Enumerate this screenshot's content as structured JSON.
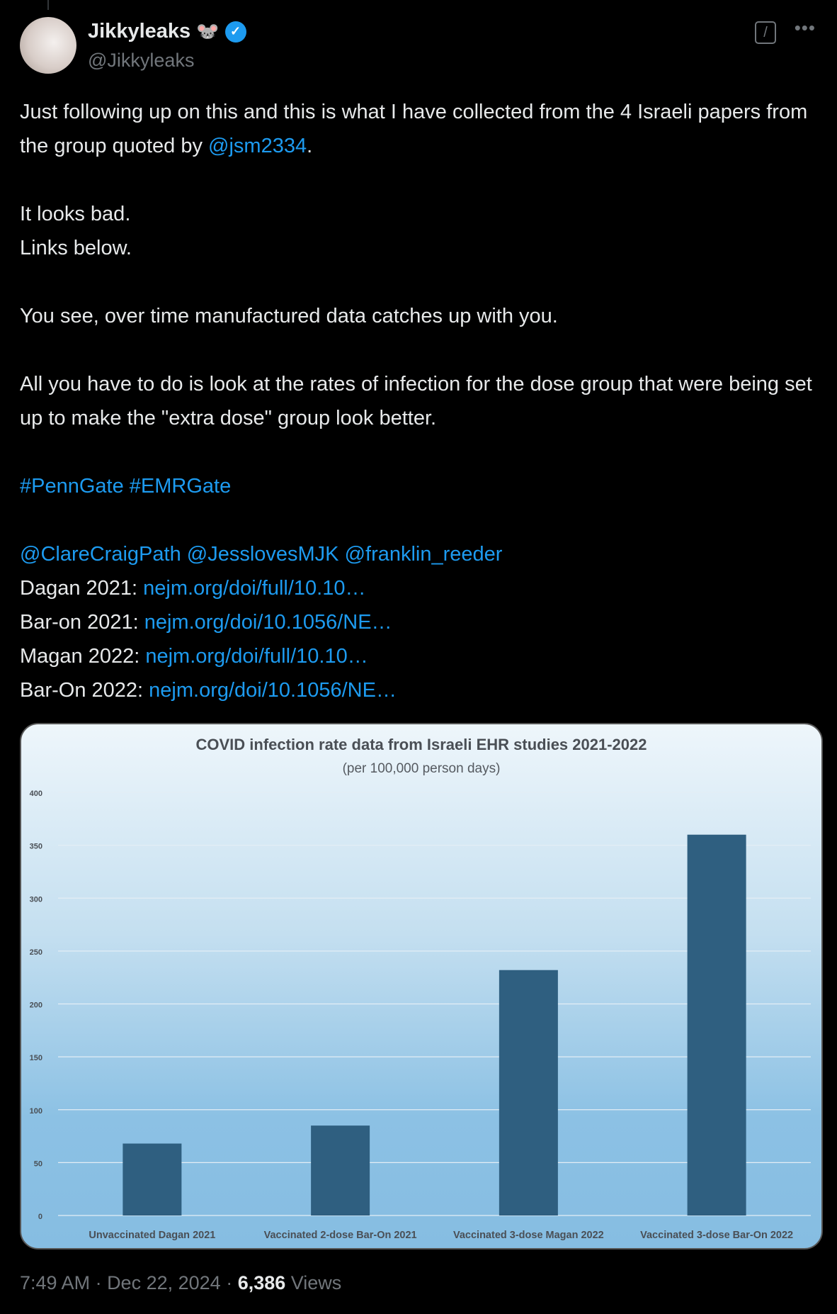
{
  "author": {
    "name": "Jikkyleaks",
    "emoji": "🐭",
    "handle": "@Jikkyleaks",
    "verified": true
  },
  "icons": {
    "grok": "grok-icon",
    "more": "more-icon"
  },
  "post": {
    "p1a": "Just following up on this and this is what I have collected from the 4 Israeli papers from the group quoted by ",
    "mention1": "@jsm2334",
    "p1b": ".",
    "p2": "It looks bad.\nLinks below.",
    "p3": "You see, over time manufactured data catches up with you.",
    "p4": "All you have to do is look at the rates of infection for the dose group that were being set up to make the \"extra dose\" group look better.",
    "hashtags": "#PennGate #EMRGate",
    "mentions": "@ClareCraigPath @JesslovesMJK @franklin_reeder",
    "links": [
      {
        "label": "Dagan 2021: ",
        "url": "nejm.org/doi/full/10.10…"
      },
      {
        "label": "Bar-on 2021: ",
        "url": "nejm.org/doi/10.1056/NE…"
      },
      {
        "label": "Magan 2022: ",
        "url": "nejm.org/doi/full/10.10…"
      },
      {
        "label": "Bar-On 2022: ",
        "url": "nejm.org/doi/10.1056/NE…"
      }
    ]
  },
  "chart_data": {
    "type": "bar",
    "title": "COVID infection rate data from Israeli EHR studies 2021-2022",
    "subtitle": "(per 100,000 person days)",
    "categories": [
      "Unvaccinated Dagan 2021",
      "Vaccinated 2-dose Bar-On 2021",
      "Vaccinated 3-dose Magan 2022",
      "Vaccinated 3-dose Bar-On 2022"
    ],
    "values": [
      68,
      85,
      232,
      360
    ],
    "ylim": [
      0,
      400
    ],
    "yticks": [
      0,
      50,
      100,
      150,
      200,
      250,
      300,
      350,
      400
    ],
    "grid": true,
    "bar_color": "#2f5f80"
  },
  "footer": {
    "time": "7:49 AM",
    "sep": " · ",
    "date": "Dec 22, 2024",
    "views_count": "6,386",
    "views_label": " Views"
  }
}
